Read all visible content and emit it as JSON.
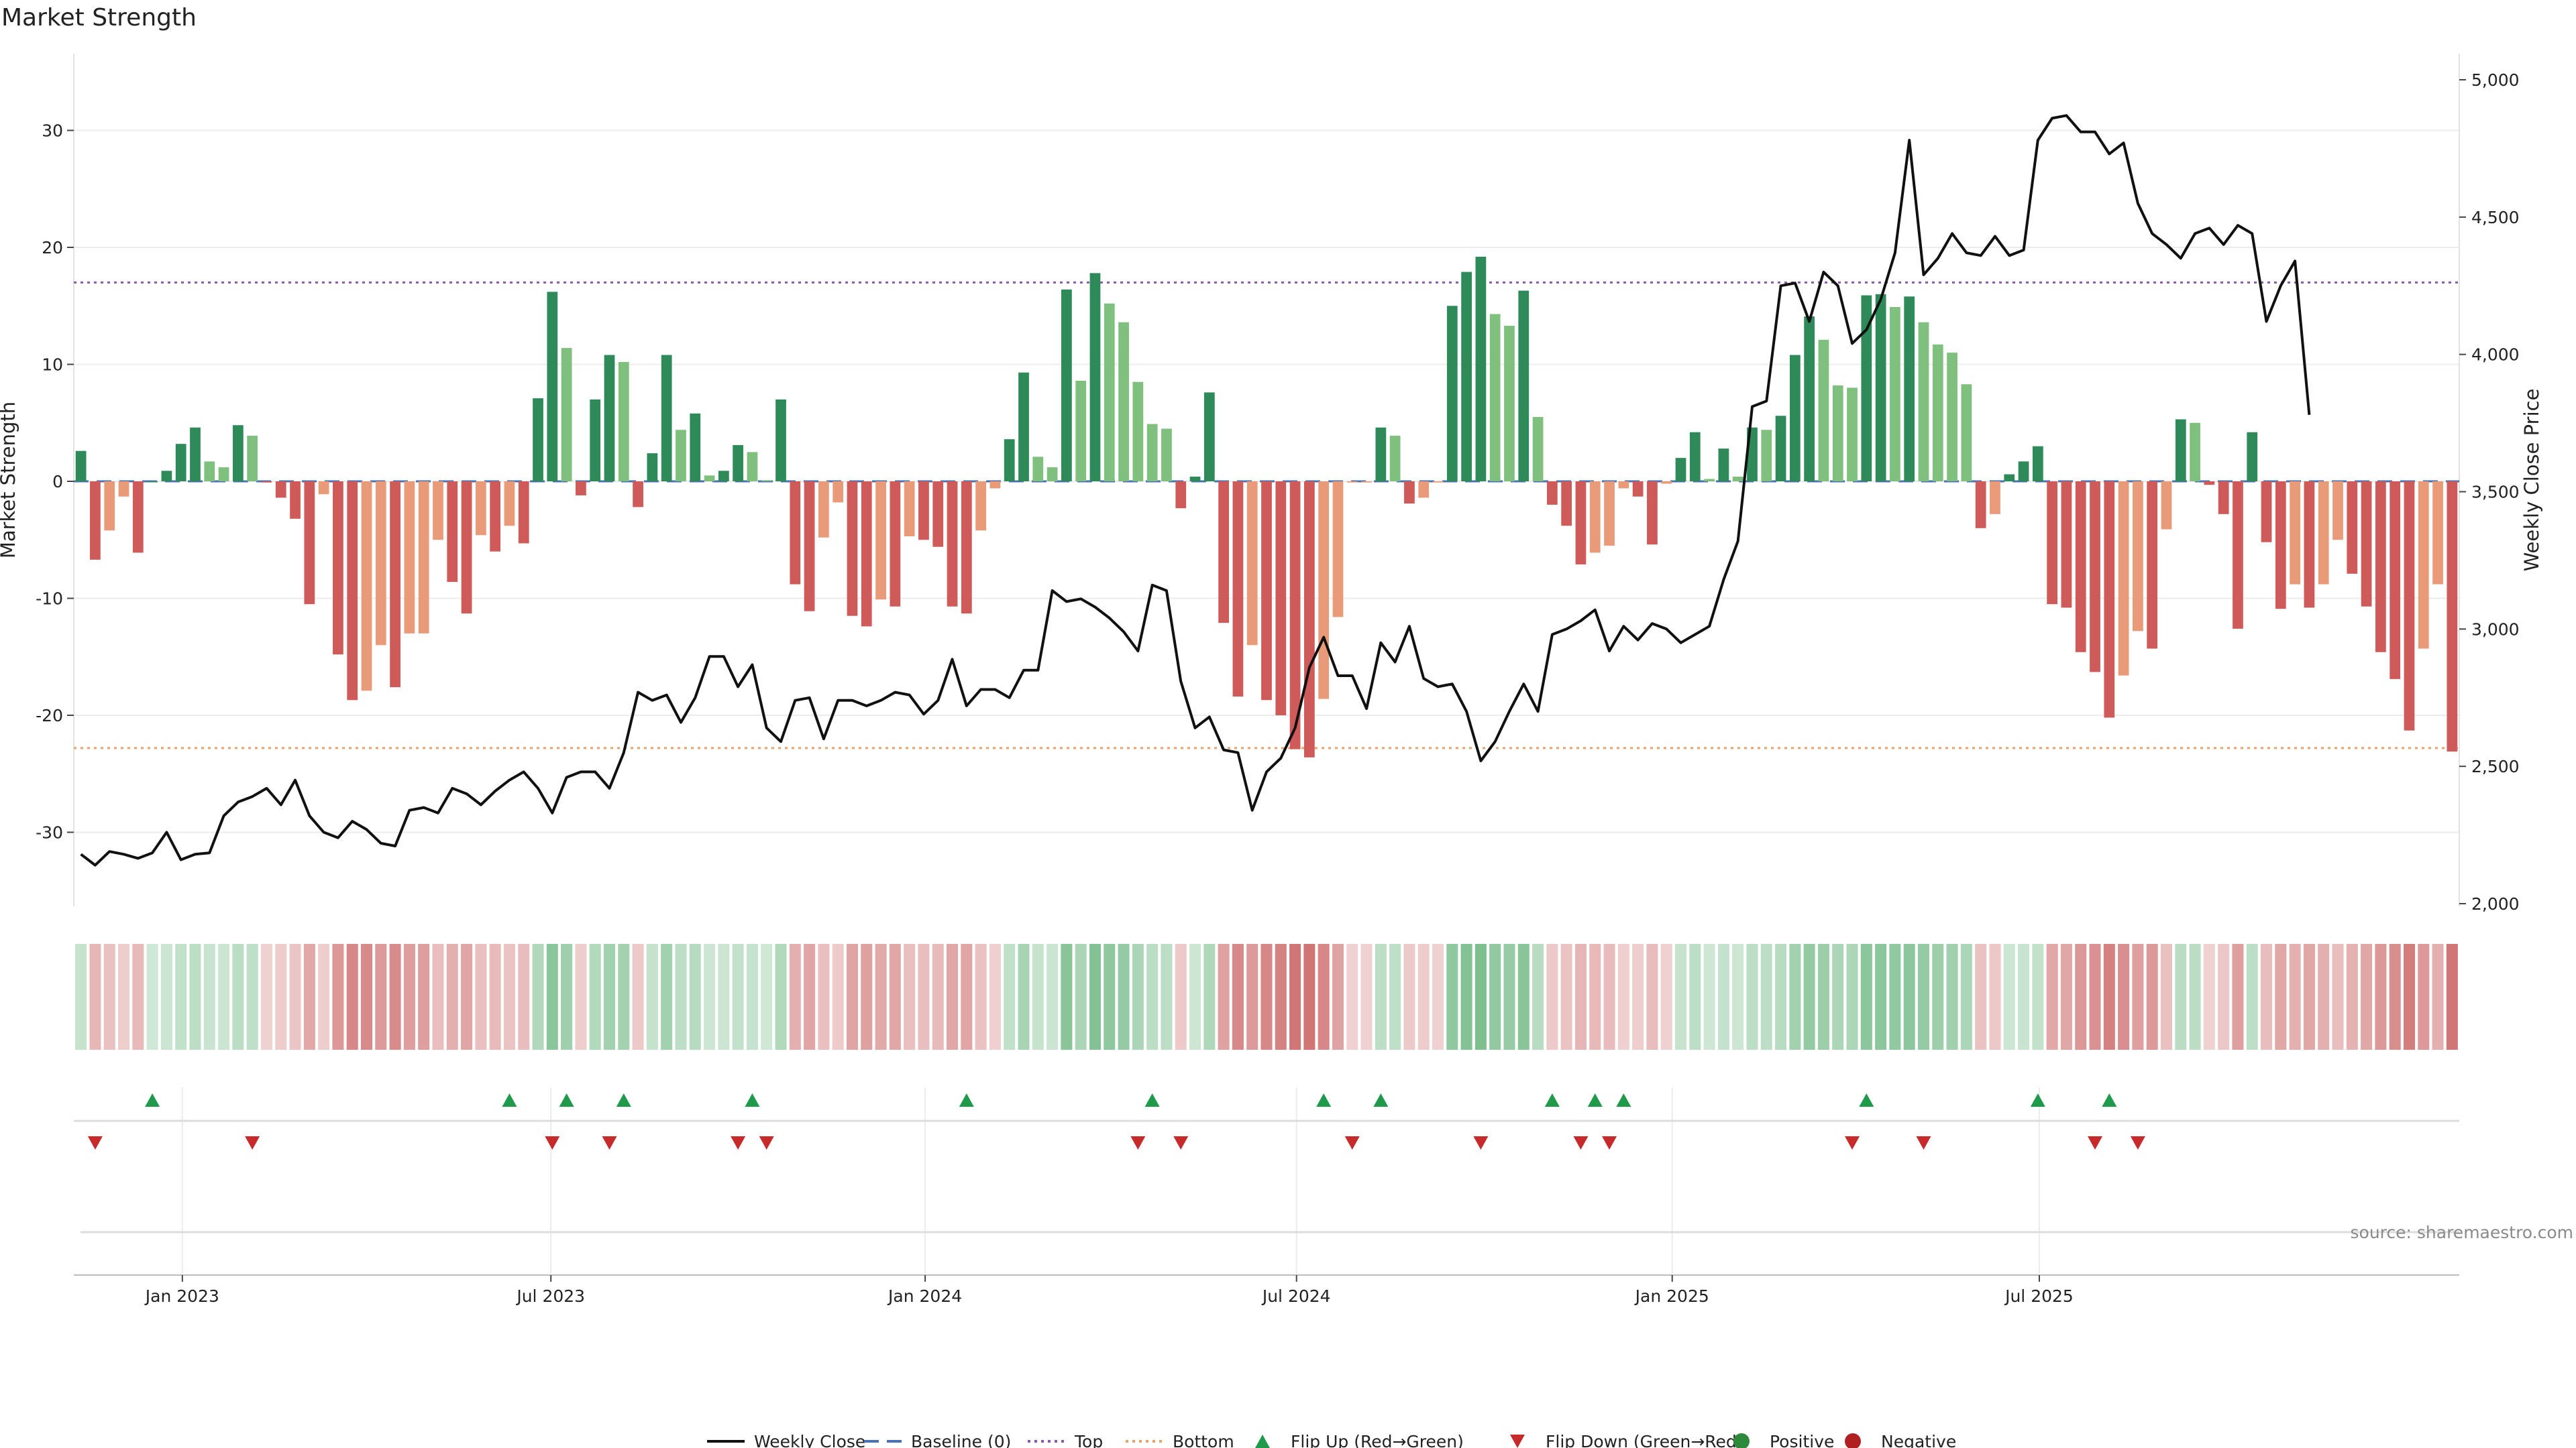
{
  "chart_data": {
    "type": "bar",
    "title": "Market Strength",
    "ylabel": "Market Strength",
    "y2label": "Weekly Close Price",
    "source_note": "source: sharemaestro.com",
    "ylim": [
      -36.5,
      36.5
    ],
    "y2lim": [
      2000,
      5000
    ],
    "y_ticks": [
      30,
      20,
      10,
      0,
      -10,
      -20,
      -30
    ],
    "y2_ticks": [
      {
        "v": 5000,
        "label": "5,000"
      },
      {
        "v": 4500,
        "label": "4,500"
      },
      {
        "v": 4000,
        "label": "4,000"
      },
      {
        "v": 3500,
        "label": "3,500"
      },
      {
        "v": 3000,
        "label": "3,000"
      },
      {
        "v": 2500,
        "label": "2,500"
      },
      {
        "v": 2000,
        "label": "2,000"
      }
    ],
    "x_ticks": [
      {
        "w": 7.6,
        "label": "Jan 2023"
      },
      {
        "w": 33.4,
        "label": "Jul 2023"
      },
      {
        "w": 59.6,
        "label": "Jan 2024"
      },
      {
        "w": 85.6,
        "label": "Jul 2024"
      },
      {
        "w": 111.9,
        "label": "Jan 2025"
      },
      {
        "w": 137.6,
        "label": "Jul 2025"
      }
    ],
    "top_level": 17.0,
    "bottom_level": -22.8,
    "baseline": 0,
    "series": [
      {
        "name": "Market Strength",
        "type": "bar",
        "values": [
          2.6,
          -6.7,
          -4.2,
          -1.3,
          -6.1,
          0.0,
          0.9,
          3.2,
          4.6,
          1.7,
          1.2,
          4.8,
          3.9,
          -0.1,
          -1.4,
          -3.2,
          -10.5,
          -1.1,
          -14.8,
          -18.7,
          -17.9,
          -14.0,
          -17.6,
          -13.0,
          -13.0,
          -5.0,
          -8.6,
          -11.3,
          -4.6,
          -6.0,
          -3.8,
          -5.3,
          7.1,
          16.2,
          11.4,
          -1.2,
          7.0,
          10.8,
          10.2,
          -2.2,
          2.4,
          10.8,
          4.4,
          5.8,
          0.5,
          0.9,
          3.1,
          2.5,
          0.1,
          7.0,
          -8.8,
          -11.1,
          -4.8,
          -1.8,
          -11.5,
          -12.4,
          -10.1,
          -10.7,
          -4.7,
          -5.0,
          -5.6,
          -10.7,
          -11.3,
          -4.2,
          -0.6,
          3.6,
          9.3,
          2.1,
          1.2,
          16.4,
          8.6,
          17.8,
          15.2,
          13.6,
          8.5,
          4.9,
          4.5,
          -2.3,
          0.4,
          7.6,
          -12.1,
          -18.4,
          -14.0,
          -18.7,
          -20.0,
          -22.9,
          -23.6,
          -18.6,
          -11.6,
          -0.1,
          -0.1,
          4.6,
          3.9,
          -1.9,
          -1.4,
          -0.1,
          15.0,
          17.9,
          19.2,
          14.3,
          13.3,
          16.3,
          5.5,
          -2.0,
          -3.8,
          -7.1,
          -6.1,
          -5.5,
          -0.6,
          -1.3,
          -5.4,
          -0.2,
          2.0,
          4.2,
          0.2,
          2.8,
          0.4,
          4.6,
          4.4,
          5.6,
          10.8,
          14.1,
          12.1,
          8.2,
          8.0,
          15.9,
          16.0,
          14.9,
          15.8,
          13.6,
          11.7,
          11.0,
          8.3,
          -4.0,
          -2.8,
          0.6,
          1.7,
          3.0,
          -10.5,
          -10.8,
          -14.6,
          -16.3,
          -20.2,
          -16.6,
          -12.8,
          -14.3,
          -4.1,
          5.3,
          5.0,
          -0.3,
          -2.8,
          -12.6,
          4.2,
          -5.2,
          -10.9,
          -8.8,
          -10.8,
          -8.8,
          -5.0,
          -7.9,
          -10.7,
          -14.6,
          -16.9,
          -21.3,
          -14.3,
          -8.8,
          -23.1
        ]
      },
      {
        "name": "Weekly Close",
        "type": "line",
        "values": [
          2180,
          2140,
          2190,
          2180,
          2165,
          2185,
          2260,
          2160,
          2180,
          2185,
          2320,
          2370,
          2390,
          2420,
          2360,
          2450,
          2320,
          2260,
          2240,
          2300,
          2270,
          2220,
          2210,
          2340,
          2350,
          2330,
          2420,
          2400,
          2360,
          2410,
          2450,
          2480,
          2420,
          2330,
          2460,
          2480,
          2480,
          2420,
          2550,
          2770,
          2740,
          2760,
          2660,
          2750,
          2900,
          2900,
          2790,
          2870,
          2640,
          2590,
          2740,
          2750,
          2600,
          2740,
          2740,
          2720,
          2740,
          2770,
          2760,
          2690,
          2740,
          2890,
          2720,
          2780,
          2780,
          2750,
          2850,
          2850,
          3140,
          3100,
          3110,
          3080,
          3040,
          2990,
          2920,
          3160,
          3140,
          2810,
          2640,
          2680,
          2560,
          2550,
          2340,
          2480,
          2530,
          2640,
          2860,
          2970,
          2830,
          2830,
          2710,
          2950,
          2880,
          3010,
          2820,
          2790,
          2800,
          2700,
          2520,
          2590,
          2700,
          2800,
          2700,
          2980,
          3000,
          3030,
          3070,
          2920,
          3010,
          2960,
          3020,
          3000,
          2950,
          2980,
          3010,
          3180,
          3320,
          3810,
          3830,
          4250,
          4260,
          4120,
          4300,
          4250,
          4040,
          4090,
          4200,
          4370,
          4780,
          4290,
          4350,
          4440,
          4370,
          4360,
          4430,
          4360,
          4380,
          4780,
          4860,
          4870,
          4810,
          4810,
          4730,
          4770,
          4550,
          4440,
          4400,
          4350,
          4440,
          4460,
          4400,
          4470,
          4440,
          4120,
          4250,
          4340,
          3780
        ]
      }
    ],
    "flip_up_weeks": [
      5,
      30,
      34,
      38,
      47,
      62,
      75,
      87,
      91,
      103,
      106,
      108,
      125,
      137,
      142
    ],
    "flip_down_weeks": [
      1,
      12,
      33,
      37,
      46,
      48,
      74,
      77,
      89,
      98,
      105,
      107,
      124,
      129,
      141,
      144
    ],
    "legend_position": "bottom-center",
    "legend": [
      {
        "label": "Weekly Close",
        "marker": "line",
        "color": "#111111"
      },
      {
        "label": "Baseline (0)",
        "marker": "dash",
        "color": "#4a72b0"
      },
      {
        "label": "Top",
        "marker": "dot-line",
        "color": "#8a5aa6"
      },
      {
        "label": "Bottom",
        "marker": "dot-line",
        "color": "#e4a46c"
      },
      {
        "label": "Flip Up (Red→Green)",
        "marker": "triangle-up",
        "color": "#1e9a4a"
      },
      {
        "label": "Flip Down (Green→Red)",
        "marker": "triangle-down",
        "color": "#c62a2a"
      },
      {
        "label": "Positive",
        "marker": "circle",
        "color": "#2e8a3a"
      },
      {
        "label": "Negative",
        "marker": "circle",
        "color": "#b02020"
      }
    ],
    "colors": {
      "pos_strong": "#2e8a58",
      "pos_light": "#7fc07f",
      "neg_strong": "#cf5a5a",
      "neg_light": "#e99a78",
      "top_line": "#8a5aa6",
      "bottom_line": "#e4a46c",
      "baseline": "#4a72b0",
      "price_line": "#111111",
      "flip_up": "#1e9a4a",
      "flip_down": "#c62a2a"
    }
  }
}
